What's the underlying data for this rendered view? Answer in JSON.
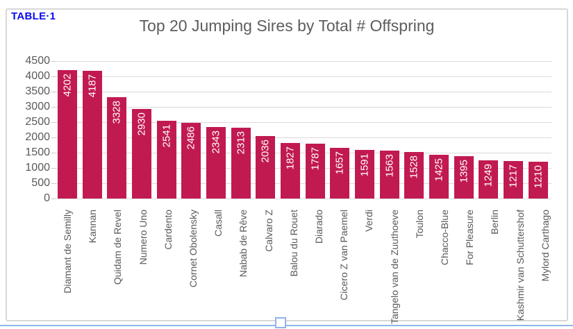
{
  "document": {
    "table_label": "TABLE·1",
    "table_label_color": "#0a0af0",
    "border_line_color": "#8fb4e8"
  },
  "chart_data": {
    "type": "bar",
    "title": "Top 20 Jumping Sires by Total # Offspring",
    "xlabel": "",
    "ylabel": "",
    "categories": [
      "Diamant de Semilly",
      "Kannan",
      "Quidam de Revel",
      "Numero Uno",
      "Cardento",
      "Cornet Obolensky",
      "Casall",
      "Nabab de Rêve",
      "Calvaro Z",
      "Balou du Rouet",
      "Diarado",
      "Cicero Z van Paemel",
      "Verdi",
      "Tangelo van de Zuuthoeve",
      "Toulon",
      "Chacco-Blue",
      "For Pleasure",
      "Berlin",
      "Kashmir van Schuttershof",
      "Mylord Carthago"
    ],
    "values": [
      4202,
      4187,
      3328,
      2930,
      2541,
      2486,
      2343,
      2313,
      2036,
      1827,
      1787,
      1657,
      1591,
      1563,
      1528,
      1425,
      1395,
      1249,
      1217,
      1210
    ],
    "y_ticks": [
      0,
      500,
      1000,
      1500,
      2000,
      2500,
      3000,
      3500,
      4000,
      4500
    ],
    "ylim": [
      0,
      4500
    ],
    "bar_color": "#c11a51",
    "value_label_position": "inside-top-rotated",
    "grid": true,
    "legend": false
  }
}
